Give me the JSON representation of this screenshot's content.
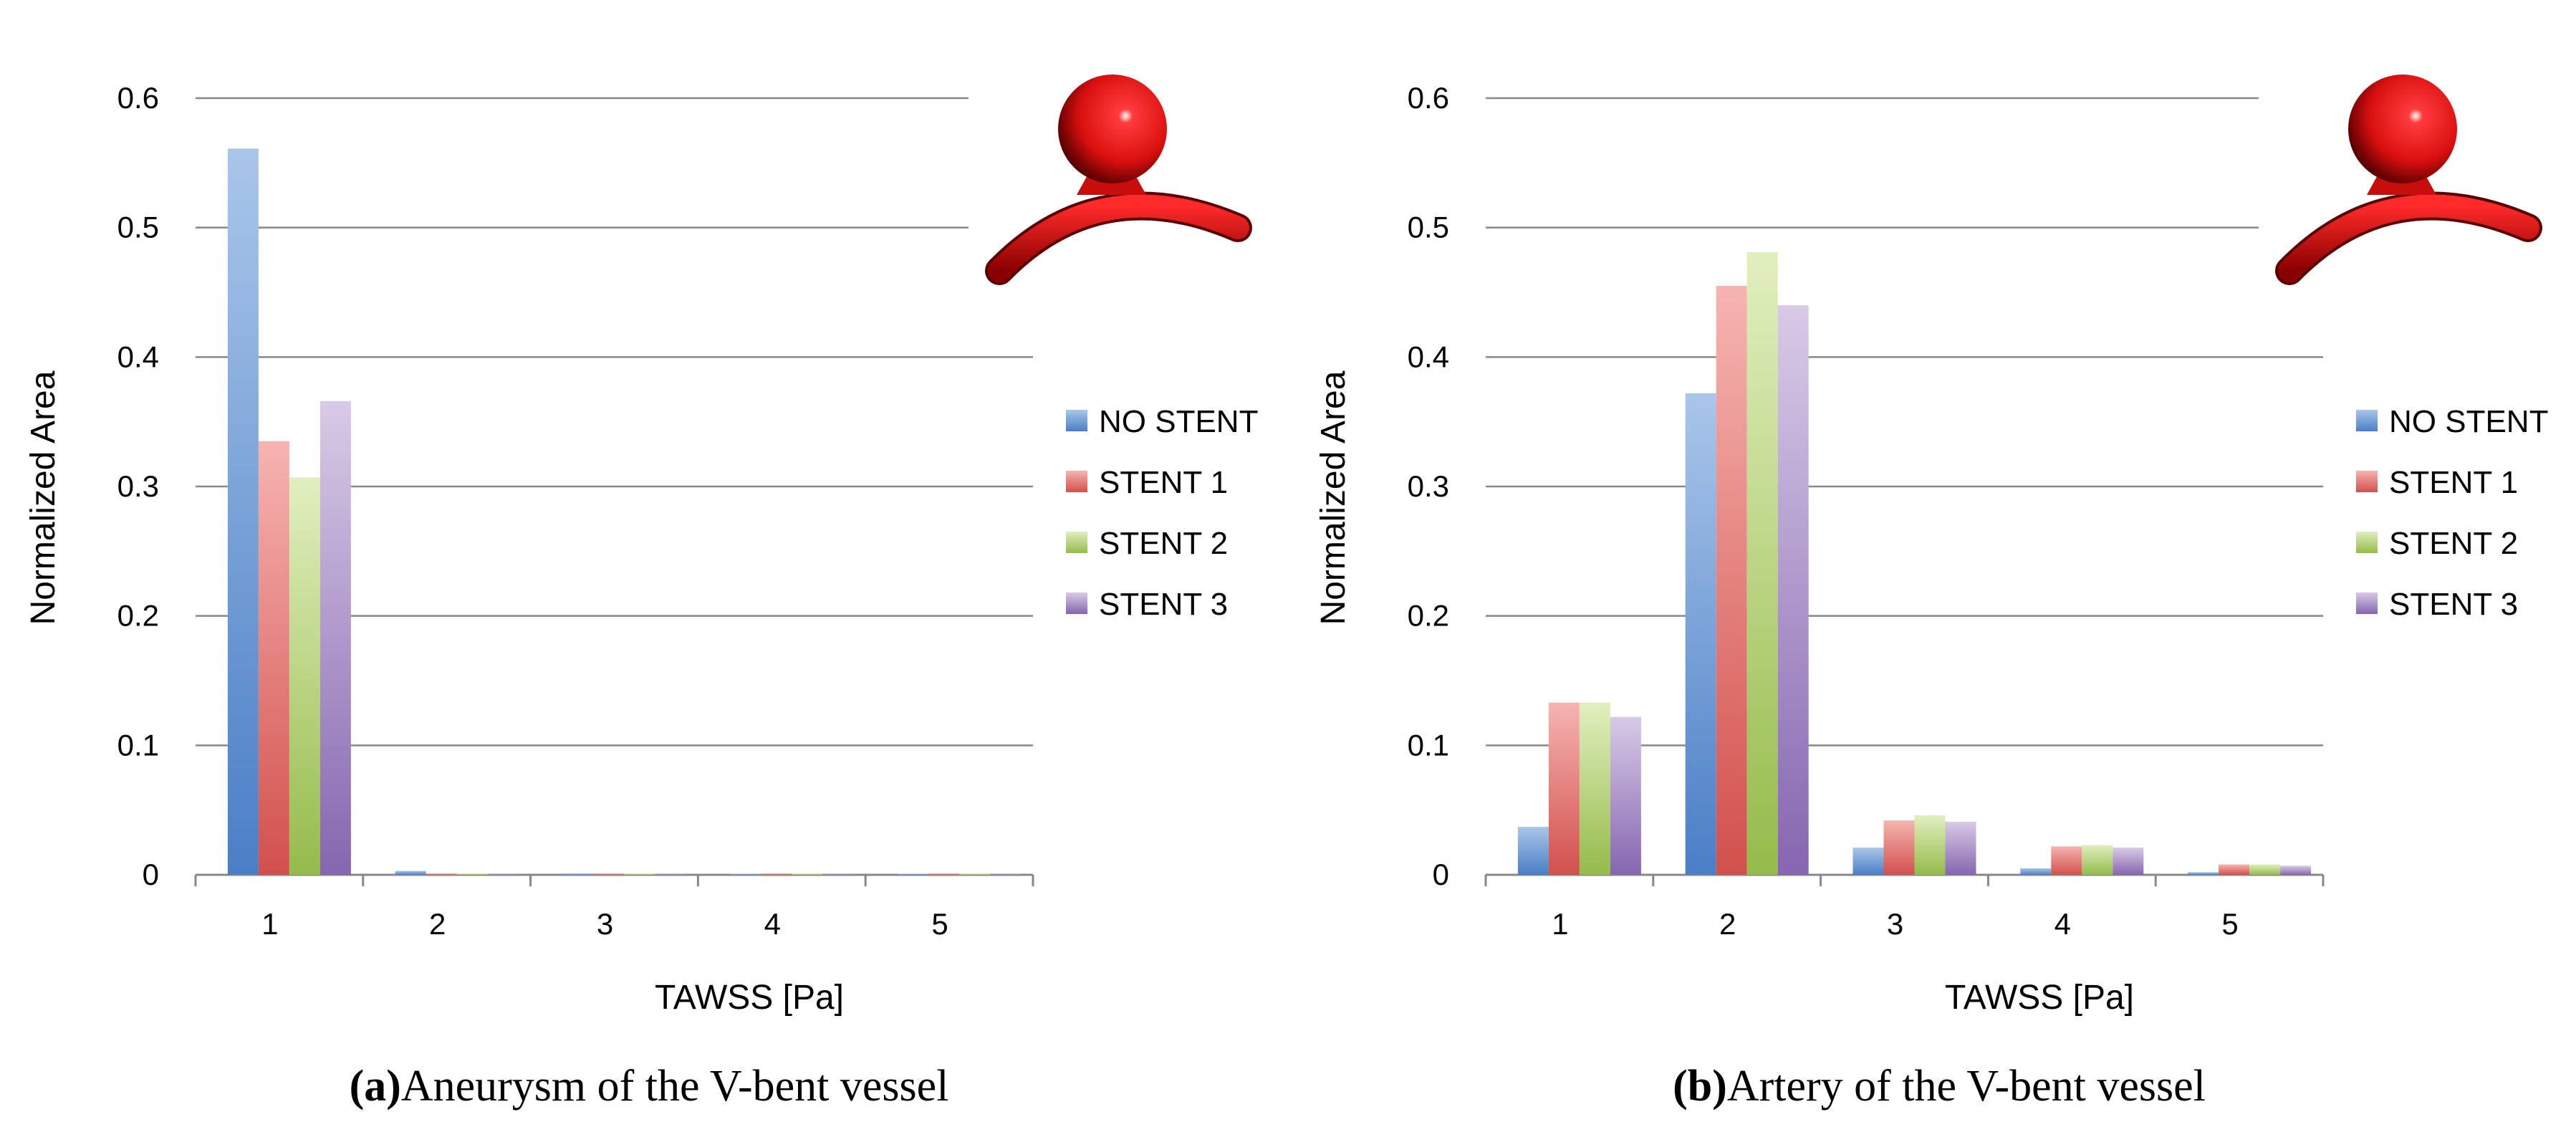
{
  "colors": {
    "no_stent": [
      "#a9c6e9",
      "#4a7ec6"
    ],
    "stent_1": [
      "#f6b4b1",
      "#d2504c"
    ],
    "stent_2": [
      "#e1efbf",
      "#95bb4a"
    ],
    "stent_3": [
      "#d8cae6",
      "#8566b0"
    ],
    "grid": "#888888",
    "axis": "#888888"
  },
  "chart_data": [
    {
      "type": "bar",
      "panel": "a",
      "caption_label": "(a)",
      "caption_text": "Aneurysm of the V-bent vessel",
      "xlabel": "TAWSS [Pa]",
      "ylabel": "Normalized Area",
      "ylim": [
        0,
        0.6
      ],
      "yticks": [
        "0",
        "0.1",
        "0.2",
        "0.3",
        "0.4",
        "0.5",
        "0.6"
      ],
      "grid": true,
      "legend_position": "right",
      "categories": [
        "1",
        "2",
        "3",
        "4",
        "5"
      ],
      "series": [
        {
          "name": "NO STENT",
          "values": [
            0.561,
            0.003,
            0.001,
            0.0,
            0.0
          ]
        },
        {
          "name": "STENT 1",
          "values": [
            0.335,
            0.001,
            0.001,
            0.001,
            0.001
          ]
        },
        {
          "name": "STENT 2",
          "values": [
            0.307,
            0.001,
            0.001,
            0.001,
            0.001
          ]
        },
        {
          "name": "STENT 3",
          "values": [
            0.366,
            0.001,
            0.001,
            0.001,
            0.001
          ]
        }
      ]
    },
    {
      "type": "bar",
      "panel": "b",
      "caption_label": "(b)",
      "caption_text": "Artery of the V-bent vessel",
      "xlabel": "TAWSS [Pa]",
      "ylabel": "Normalized Area",
      "ylim": [
        0,
        0.6
      ],
      "yticks": [
        "0",
        "0.1",
        "0.2",
        "0.3",
        "0.4",
        "0.5",
        "0.6"
      ],
      "grid": true,
      "legend_position": "right",
      "categories": [
        "1",
        "2",
        "3",
        "4",
        "5"
      ],
      "series": [
        {
          "name": "NO STENT",
          "values": [
            0.037,
            0.372,
            0.021,
            0.005,
            0.002
          ]
        },
        {
          "name": "STENT 1",
          "values": [
            0.133,
            0.455,
            0.042,
            0.022,
            0.008
          ]
        },
        {
          "name": "STENT 2",
          "values": [
            0.133,
            0.481,
            0.046,
            0.023,
            0.008
          ]
        },
        {
          "name": "STENT 3",
          "values": [
            0.122,
            0.44,
            0.041,
            0.021,
            0.007
          ]
        }
      ]
    }
  ]
}
